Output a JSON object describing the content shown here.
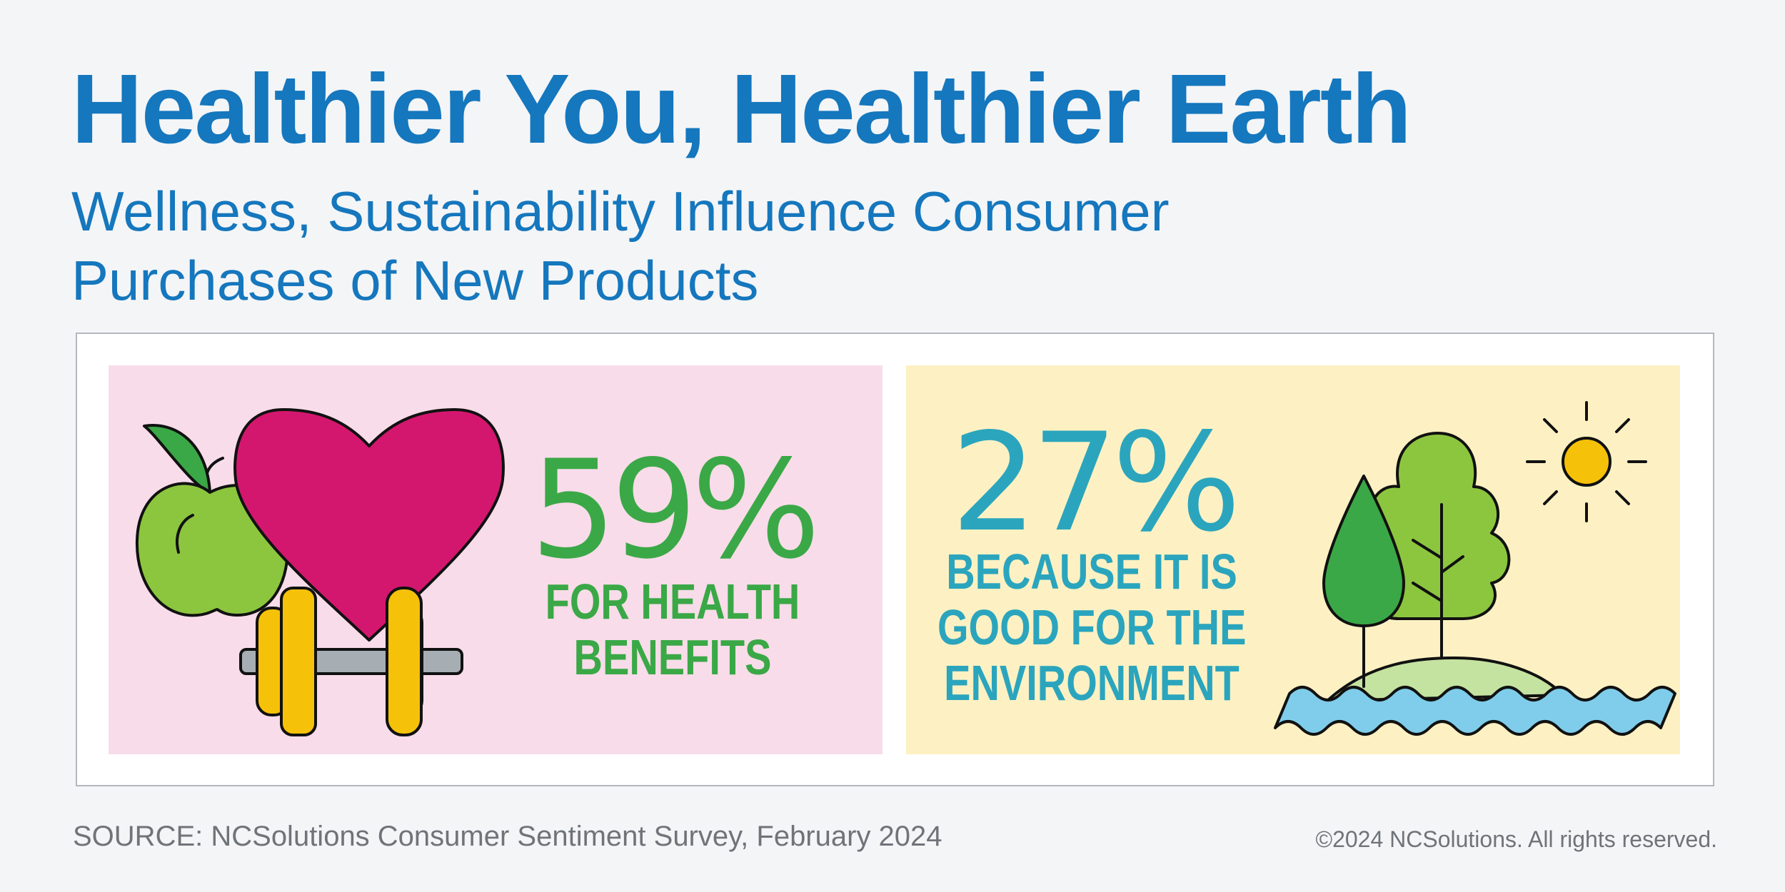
{
  "title": "Healthier You, Healthier Earth",
  "subtitle": "Wellness, Sustainability Influence Consumer Purchases of New Products",
  "health": {
    "percent": "59%",
    "caption": "FOR HEALTH BENEFITS",
    "color": "#3aa846",
    "icons": [
      "apple-icon",
      "heart-icon",
      "dumbbell-icon"
    ]
  },
  "environment": {
    "percent": "27%",
    "caption": "BECAUSE IT IS GOOD FOR THE ENVIRONMENT",
    "color": "#2ba5bd",
    "icons": [
      "tree-icon",
      "sun-icon",
      "water-waves-icon"
    ]
  },
  "footer": {
    "source": "SOURCE: NCSolutions Consumer Sentiment Survey, February 2024",
    "copyright": "©2024 NCSolutions. All rights reserved."
  },
  "colors": {
    "title_blue": "#1577bd",
    "health_panel": "#f8dce9",
    "environment_panel": "#fdf1c3"
  }
}
